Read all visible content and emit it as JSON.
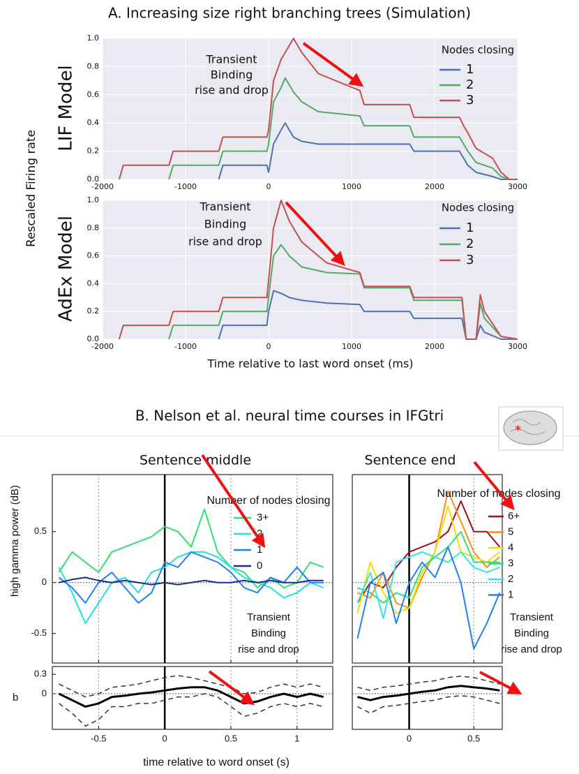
{
  "figure_a": {
    "title": "A. Increasing size right branching trees (Simulation)",
    "ylabel": "Rescaled Firing rate",
    "xlabel": "Time relative to last word onset (ms)"
  },
  "figure_b": {
    "title": "B. Nelson et al. neural time courses in IFGtri",
    "ylabel": "high gamma power (dB)",
    "xlabel": "time relative to word onset (s)",
    "panel_label": "b"
  },
  "chart_data": [
    {
      "type": "line",
      "title": "LIF Model",
      "legend_title": "Nodes closing",
      "annotation": [
        "Transient",
        "Binding",
        "rise and drop"
      ],
      "grid": true,
      "x": [
        -2000,
        -1800,
        -1750,
        -1200,
        -1150,
        -600,
        -550,
        -20,
        0,
        60,
        150,
        200,
        300,
        400,
        600,
        1100,
        1150,
        1700,
        1750,
        2300,
        2350,
        2400,
        2500,
        2700,
        2800,
        2900,
        3000
      ],
      "series": [
        {
          "name": "1",
          "color": "#4c72b0",
          "values": [
            null,
            null,
            null,
            null,
            null,
            0,
            0.1,
            0.1,
            0.05,
            0.25,
            0.35,
            0.4,
            0.3,
            0.27,
            0.25,
            0.25,
            0.25,
            0.25,
            0.2,
            0.2,
            0.15,
            0.1,
            0.05,
            0.02,
            0,
            0,
            0
          ]
        },
        {
          "name": "2",
          "color": "#55a868",
          "values": [
            null,
            null,
            null,
            0,
            0.1,
            0.1,
            0.2,
            0.2,
            0.25,
            0.55,
            0.65,
            0.72,
            0.62,
            0.55,
            0.48,
            0.45,
            0.38,
            0.38,
            0.3,
            0.3,
            0.25,
            0.2,
            0.12,
            0.08,
            0.02,
            0,
            0
          ]
        },
        {
          "name": "3",
          "color": "#c44e52",
          "values": [
            null,
            0,
            0.1,
            0.1,
            0.2,
            0.2,
            0.3,
            0.3,
            0.35,
            0.7,
            0.85,
            0.9,
            1.0,
            0.9,
            0.75,
            0.63,
            0.53,
            0.53,
            0.44,
            0.44,
            0.38,
            0.33,
            0.22,
            0.15,
            0.05,
            0,
            0
          ]
        }
      ],
      "xlim": [
        -2000,
        3000
      ],
      "xticks": [
        -2000,
        -1000,
        0,
        1000,
        2000,
        3000
      ],
      "ylim": [
        0,
        1
      ],
      "yticks": [
        {
          "value": 0,
          "label": "0.0"
        },
        0.2,
        0.4,
        0.6,
        0.8,
        {
          "value": 1,
          "label": "1.0"
        }
      ]
    },
    {
      "type": "line",
      "title": "AdEx Model",
      "legend_title": "Nodes closing",
      "annotation": [
        "Transient",
        "Binding",
        "rise and drop"
      ],
      "grid": true,
      "x": [
        -2000,
        -1800,
        -1750,
        -1200,
        -1150,
        -600,
        -550,
        -20,
        0,
        60,
        150,
        250,
        400,
        700,
        1100,
        1150,
        1700,
        1750,
        2330,
        2380,
        2500,
        2550,
        2600,
        2800,
        3000
      ],
      "series": [
        {
          "name": "1",
          "color": "#4c72b0",
          "values": [
            null,
            null,
            null,
            null,
            null,
            0,
            0.1,
            0.1,
            0.2,
            0.35,
            0.33,
            0.3,
            0.28,
            0.26,
            0.25,
            0.2,
            0.2,
            0.15,
            0.15,
            0,
            0,
            0.1,
            0.05,
            0,
            0
          ]
        },
        {
          "name": "2",
          "color": "#55a868",
          "values": [
            null,
            null,
            null,
            0,
            0.1,
            0.1,
            0.2,
            0.2,
            0.3,
            0.6,
            0.68,
            0.6,
            0.52,
            0.48,
            0.47,
            0.37,
            0.37,
            0.28,
            0.28,
            0,
            0,
            0.26,
            0.15,
            0.02,
            0
          ]
        },
        {
          "name": "3",
          "color": "#c44e52",
          "values": [
            null,
            0,
            0.1,
            0.1,
            0.2,
            0.2,
            0.3,
            0.3,
            0.42,
            0.8,
            1.0,
            0.85,
            0.7,
            0.55,
            0.48,
            0.38,
            0.38,
            0.3,
            0.3,
            0,
            0,
            0.32,
            0.2,
            0.02,
            0
          ]
        }
      ],
      "xlim": [
        -2000,
        3000
      ],
      "xticks": [
        -2000,
        -1000,
        0,
        1000,
        2000,
        3000
      ],
      "ylim": [
        0,
        1
      ],
      "yticks": [
        {
          "value": 0,
          "label": "0.0"
        },
        0.2,
        0.4,
        0.6,
        0.8,
        {
          "value": 1,
          "label": "1.0"
        }
      ]
    },
    {
      "type": "line",
      "title": "Sentence middle",
      "legend_title": "Number of nodes closing",
      "annotation": [
        "Transient",
        "Binding",
        "rise and drop"
      ],
      "grid": true,
      "onset": 0,
      "hline": 0,
      "x": [
        -0.8,
        -0.7,
        -0.6,
        -0.5,
        -0.4,
        -0.3,
        -0.2,
        -0.1,
        0,
        0.1,
        0.2,
        0.3,
        0.4,
        0.5,
        0.6,
        0.7,
        0.8,
        0.9,
        1.0,
        1.1,
        1.2
      ],
      "series": [
        {
          "name": "3+",
          "color": "#2ee070",
          "values": [
            0.1,
            0.3,
            0.2,
            0.1,
            0.3,
            0.35,
            0.4,
            0.45,
            0.55,
            0.5,
            0.35,
            0.72,
            0.3,
            0.15,
            0.1,
            -0.05,
            0.05,
            -0.05,
            0,
            0.2,
            0.15
          ]
        },
        {
          "name": "2",
          "color": "#22e0e0",
          "values": [
            0.15,
            -0.1,
            -0.4,
            -0.2,
            0,
            0.05,
            -0.1,
            0.1,
            0.15,
            0.25,
            0.3,
            0.3,
            0.25,
            0.15,
            0.05,
            0,
            -0.05,
            -0.15,
            -0.1,
            0,
            -0.05
          ]
        },
        {
          "name": "1",
          "color": "#1e7fff",
          "values": [
            0.05,
            -0.05,
            -0.2,
            0,
            0.1,
            -0.05,
            -0.2,
            -0.1,
            0.2,
            0.15,
            0.3,
            0.25,
            0.2,
            0.1,
            -0.05,
            -0.1,
            0.05,
            0,
            0.15,
            0,
            0
          ]
        },
        {
          "name": "0",
          "color": "#1f2a8a",
          "values": [
            0,
            0.03,
            0.05,
            0.02,
            0,
            0.02,
            0,
            -0.02,
            0,
            -0.02,
            0,
            0.02,
            0,
            0,
            0.02,
            0,
            0.02,
            0,
            0,
            0.02,
            0.02
          ]
        }
      ],
      "xlim": [
        -0.85,
        1.27
      ],
      "xticks": [
        -0.5,
        0,
        0.5,
        1
      ],
      "ylim": [
        -0.79,
        1.06
      ],
      "yticks": [
        -0.5,
        0,
        0.5
      ]
    },
    {
      "type": "line",
      "title": "Sentence end",
      "legend_title": "Number of nodes closing",
      "annotation": [
        "Transient",
        "Binding",
        "rise and drop"
      ],
      "grid": true,
      "onset": 0,
      "hline": 0,
      "x": [
        -0.4,
        -0.3,
        -0.2,
        -0.1,
        0,
        0.1,
        0.2,
        0.3,
        0.4,
        0.5,
        0.6,
        0.7
      ],
      "series": [
        {
          "name": "6+",
          "color": "#a01010",
          "values": [
            -0.2,
            0,
            -0.05,
            0.15,
            0.3,
            0.35,
            0.4,
            0.5,
            0.8,
            0.5,
            0.5,
            0.35
          ]
        },
        {
          "name": "5",
          "color": "#ff8c1a",
          "values": [
            -0.1,
            -0.15,
            0.1,
            -0.2,
            -0.25,
            0.05,
            0.3,
            0.9,
            0.6,
            0.3,
            0.15,
            0.25
          ]
        },
        {
          "name": "4",
          "color": "#f0e000",
          "values": [
            -0.3,
            0.2,
            -0.1,
            -0.3,
            -0.25,
            0.1,
            0.3,
            0.75,
            0.3,
            0.25,
            0.2,
            0.3
          ]
        },
        {
          "name": "3",
          "color": "#30e080",
          "values": [
            -0.05,
            -0.1,
            -0.2,
            -0.1,
            -0.15,
            0.15,
            0.25,
            0.35,
            0.5,
            0.2,
            0.2,
            0.2
          ]
        },
        {
          "name": "2",
          "color": "#30e8e8",
          "values": [
            -0.2,
            0.1,
            -0.35,
            0.2,
            0.25,
            0.3,
            0.25,
            0.2,
            0.3,
            0.15,
            0.1,
            0.15
          ]
        },
        {
          "name": "1",
          "color": "#2080f0",
          "values": [
            -0.55,
            0,
            0.1,
            -0.4,
            0,
            0.2,
            0.05,
            0.35,
            0,
            -0.65,
            -0.4,
            -0.1
          ]
        }
      ],
      "xlim": [
        -0.44,
        0.72
      ],
      "xticks": [
        0,
        0.5
      ],
      "ylim": [
        -0.79,
        1.06
      ]
    },
    {
      "type": "line",
      "grid": true,
      "onset": 0,
      "hline": 0,
      "x": [
        -0.8,
        -0.7,
        -0.6,
        -0.5,
        -0.4,
        -0.3,
        -0.2,
        -0.1,
        0,
        0.1,
        0.2,
        0.3,
        0.4,
        0.5,
        0.6,
        0.7,
        0.8,
        0.9,
        1.0,
        1.1,
        1.2
      ],
      "series": [
        {
          "color": "#000000",
          "values": [
            0,
            -0.1,
            -0.2,
            -0.15,
            -0.05,
            -0.03,
            0,
            0.02,
            0.05,
            0.08,
            0.1,
            0.1,
            0.05,
            -0.05,
            -0.15,
            -0.12,
            -0.05,
            0,
            -0.05,
            0,
            -0.05
          ]
        },
        {
          "color": "#333333",
          "dash": true,
          "values": [
            0.15,
            0.05,
            -0.05,
            0,
            0.1,
            0.12,
            0.15,
            0.2,
            0.25,
            0.28,
            0.25,
            0.2,
            0.15,
            0.1,
            0,
            0.02,
            0.1,
            0.15,
            0.1,
            0.15,
            0.1
          ]
        },
        {
          "color": "#333333",
          "dash": true,
          "values": [
            -0.15,
            -0.3,
            -0.5,
            -0.4,
            -0.2,
            -0.2,
            -0.15,
            -0.15,
            -0.1,
            -0.05,
            -0.05,
            0,
            -0.05,
            -0.2,
            -0.35,
            -0.3,
            -0.2,
            -0.15,
            -0.2,
            -0.15,
            -0.2
          ]
        }
      ],
      "xlim": [
        -0.85,
        1.27
      ],
      "xticks": [
        -0.5,
        0,
        0.5,
        1
      ],
      "ylim": [
        -0.55,
        0.42
      ],
      "yticks": [
        0,
        0.3
      ]
    },
    {
      "type": "line",
      "grid": true,
      "onset": 0,
      "hline": 0,
      "x": [
        -0.4,
        -0.3,
        -0.2,
        -0.1,
        0,
        0.1,
        0.2,
        0.3,
        0.4,
        0.5,
        0.6,
        0.7
      ],
      "series": [
        {
          "color": "#000000",
          "values": [
            -0.05,
            -0.1,
            -0.05,
            -0.03,
            0,
            0.03,
            0.05,
            0.1,
            0.12,
            0.1,
            0.08,
            0.05
          ]
        },
        {
          "color": "#333333",
          "dash": true,
          "values": [
            0.1,
            0.05,
            0.1,
            0.12,
            0.15,
            0.18,
            0.2,
            0.25,
            0.27,
            0.25,
            0.2,
            0.15
          ]
        },
        {
          "color": "#333333",
          "dash": true,
          "values": [
            -0.2,
            -0.3,
            -0.2,
            -0.18,
            -0.15,
            -0.12,
            -0.1,
            -0.05,
            -0.03,
            -0.05,
            -0.1,
            -0.15
          ]
        }
      ],
      "xlim": [
        -0.44,
        0.72
      ],
      "xticks": [
        0,
        0.5
      ],
      "ylim": [
        -0.55,
        0.42
      ]
    }
  ]
}
